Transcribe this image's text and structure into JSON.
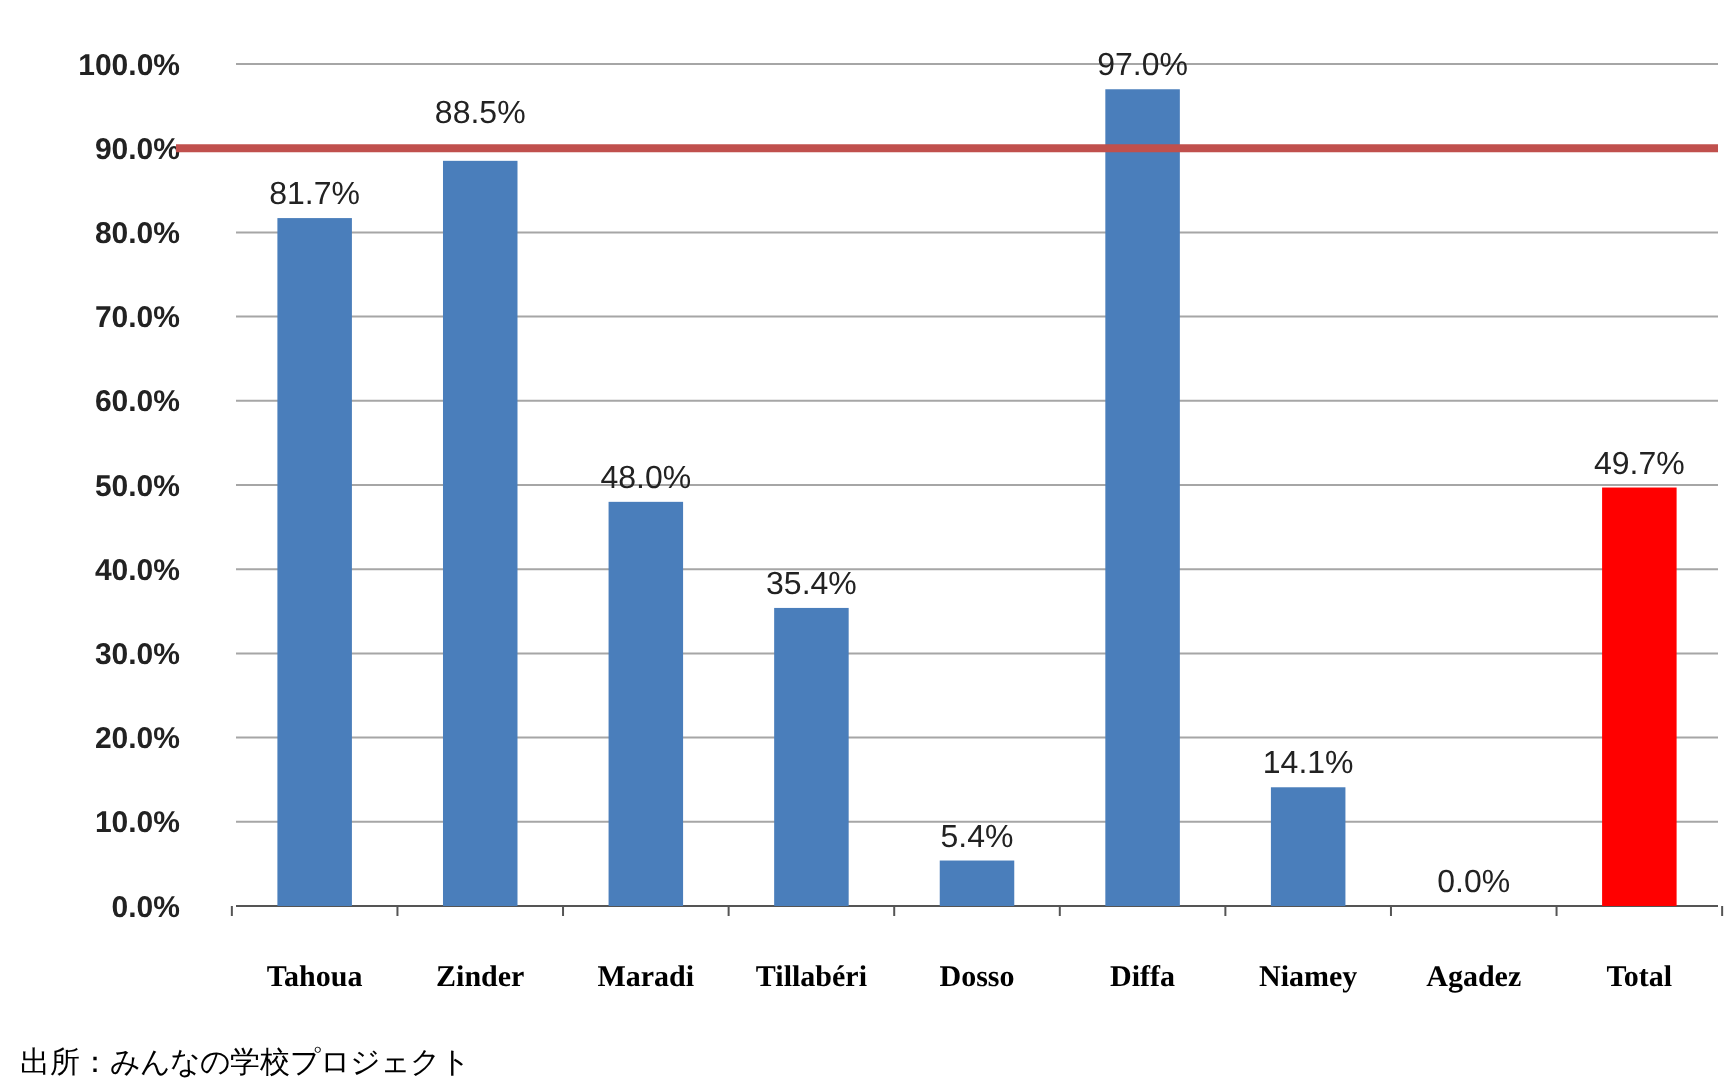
{
  "chart_data": {
    "type": "bar",
    "categories": [
      "Tahoua",
      "Zinder",
      "Maradi",
      "Tillabéri",
      "Dosso",
      "Diffa",
      "Niamey",
      "Agadez",
      "Total"
    ],
    "values": [
      81.7,
      88.5,
      48.0,
      35.4,
      5.4,
      97.0,
      14.1,
      0.0,
      49.7
    ],
    "colors": [
      "#4a7ebb",
      "#4a7ebb",
      "#4a7ebb",
      "#4a7ebb",
      "#4a7ebb",
      "#4a7ebb",
      "#4a7ebb",
      "#4a7ebb",
      "#ff0000"
    ],
    "value_labels": [
      "81.7%",
      "88.5%",
      "48.0%",
      "35.4%",
      "5.4%",
      "97.0%",
      "14.1%",
      "0.0%",
      "49.7%"
    ],
    "ylim": [
      0,
      100
    ],
    "yticks": [
      {
        "value": 0,
        "label": "0.0%"
      },
      {
        "value": 10,
        "label": "10.0%"
      },
      {
        "value": 20,
        "label": "20.0%"
      },
      {
        "value": 30,
        "label": "30.0%"
      },
      {
        "value": 40,
        "label": "40.0%"
      },
      {
        "value": 50,
        "label": "50.0%"
      },
      {
        "value": 60,
        "label": "60.0%"
      },
      {
        "value": 70,
        "label": "70.0%"
      },
      {
        "value": 80,
        "label": "80.0%"
      },
      {
        "value": 90,
        "label": "90.0%"
      },
      {
        "value": 100,
        "label": "100.0%"
      }
    ],
    "grid": "y",
    "ref_lines": [
      {
        "axis": "y",
        "value": 90,
        "color": "#c0504d"
      }
    ],
    "annotations": [
      "出所：みんなの学校プロジェクト"
    ]
  }
}
